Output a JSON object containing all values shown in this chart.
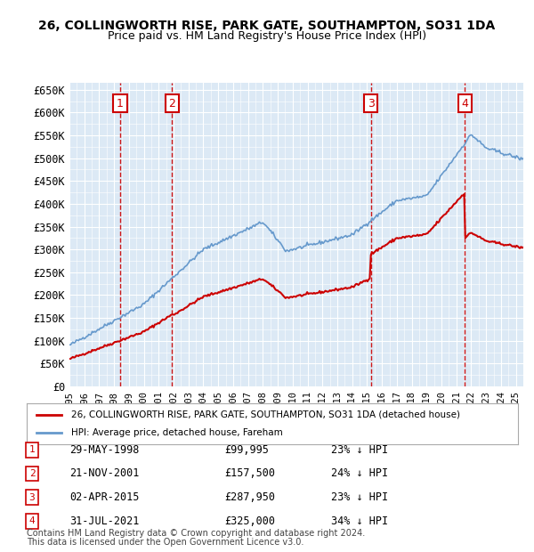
{
  "title1": "26, COLLINGWORTH RISE, PARK GATE, SOUTHAMPTON, SO31 1DA",
  "title2": "Price paid vs. HM Land Registry's House Price Index (HPI)",
  "ylabel_ticks": [
    "£0",
    "£50K",
    "£100K",
    "£150K",
    "£200K",
    "£250K",
    "£300K",
    "£350K",
    "£400K",
    "£450K",
    "£500K",
    "£550K",
    "£600K",
    "£650K"
  ],
  "ytick_values": [
    0,
    50000,
    100000,
    150000,
    200000,
    250000,
    300000,
    350000,
    400000,
    450000,
    500000,
    550000,
    600000,
    650000
  ],
  "xmin": 1995.0,
  "xmax": 2025.5,
  "ymin": 0,
  "ymax": 665000,
  "bg_color": "#dce9f5",
  "plot_bg": "#dce9f5",
  "grid_color": "#ffffff",
  "purchases": [
    {
      "num": 1,
      "date": "29-MAY-1998",
      "price": 99995,
      "year": 1998.4,
      "pct": "23%",
      "label": "1"
    },
    {
      "num": 2,
      "date": "21-NOV-2001",
      "price": 157500,
      "year": 2001.9,
      "pct": "24%",
      "label": "2"
    },
    {
      "num": 3,
      "date": "02-APR-2015",
      "price": 287950,
      "year": 2015.25,
      "pct": "23%",
      "label": "3"
    },
    {
      "num": 4,
      "date": "31-JUL-2021",
      "price": 325000,
      "year": 2021.58,
      "pct": "34%",
      "label": "4"
    }
  ],
  "legend_line1": "26, COLLINGWORTH RISE, PARK GATE, SOUTHAMPTON, SO31 1DA (detached house)",
  "legend_line2": "HPI: Average price, detached house, Fareham",
  "footer1": "Contains HM Land Registry data © Crown copyright and database right 2024.",
  "footer2": "This data is licensed under the Open Government Licence v3.0.",
  "red_color": "#cc0000",
  "blue_color": "#6699cc",
  "vline_color": "#cc0000"
}
